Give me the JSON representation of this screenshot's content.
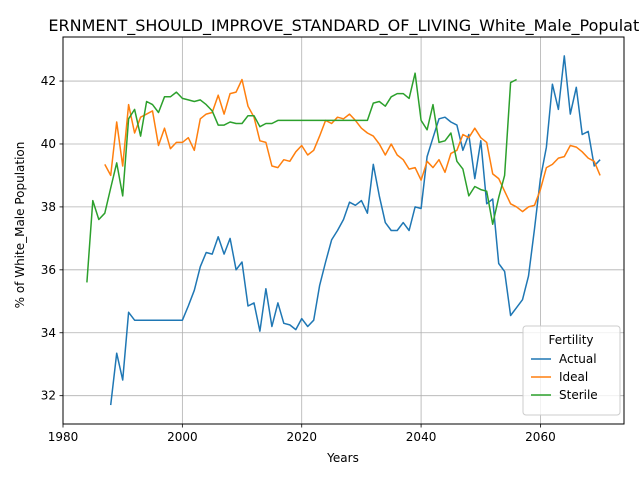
{
  "chart_data": {
    "type": "line",
    "title": "ERNMENT_SHOULD_IMPROVE_STANDARD_OF_LIVING_White_Male_Population_",
    "xlabel": "Years",
    "ylabel": "% of White_Male Population",
    "xlim": [
      1980,
      2074
    ],
    "ylim": [
      31.1,
      43.4
    ],
    "xticks": [
      1980,
      2000,
      2020,
      2040,
      2060
    ],
    "yticks": [
      32,
      34,
      36,
      38,
      40,
      42
    ],
    "grid": true,
    "legend": {
      "title": "Fertility",
      "position": "lower-right"
    },
    "series": [
      {
        "name": "Actual",
        "color": "#1f77b4",
        "x": [
          1988,
          1989,
          1990,
          1991,
          1992,
          1993,
          1994,
          1995,
          1996,
          1997,
          1998,
          1999,
          2000,
          2001,
          2002,
          2003,
          2004,
          2005,
          2006,
          2007,
          2008,
          2009,
          2010,
          2011,
          2012,
          2013,
          2014,
          2015,
          2016,
          2017,
          2018,
          2019,
          2020,
          2021,
          2022,
          2023,
          2024,
          2025,
          2026,
          2027,
          2028,
          2029,
          2030,
          2031,
          2032,
          2033,
          2034,
          2035,
          2036,
          2037,
          2038,
          2039,
          2040,
          2041,
          2042,
          2043,
          2044,
          2045,
          2046,
          2047,
          2048,
          2049,
          2050,
          2051,
          2052,
          2053,
          2054,
          2055,
          2056,
          2057,
          2058,
          2059,
          2060,
          2061,
          2062,
          2063,
          2064,
          2065,
          2066,
          2067,
          2068,
          2069,
          2070
        ],
        "values": [
          31.7,
          33.35,
          32.5,
          34.65,
          34.4,
          34.4,
          34.4,
          34.4,
          34.4,
          34.4,
          34.4,
          34.4,
          34.4,
          34.85,
          35.35,
          36.1,
          36.55,
          36.5,
          37.05,
          36.5,
          37.0,
          36.0,
          36.25,
          34.85,
          34.95,
          34.05,
          35.4,
          34.2,
          34.95,
          34.3,
          34.25,
          34.1,
          34.45,
          34.2,
          34.4,
          35.5,
          36.25,
          36.95,
          37.25,
          37.6,
          38.15,
          38.05,
          38.2,
          37.8,
          39.35,
          38.35,
          37.5,
          37.25,
          37.25,
          37.5,
          37.25,
          38.0,
          37.95,
          39.6,
          40.2,
          40.8,
          40.85,
          40.7,
          40.6,
          39.8,
          40.3,
          38.9,
          40.1,
          38.1,
          38.25,
          36.2,
          35.95,
          34.55,
          34.8,
          35.05,
          35.8,
          37.3,
          38.9,
          39.9,
          41.9,
          41.1,
          42.8,
          40.95,
          41.8,
          40.3,
          40.4,
          39.3,
          39.5
        ]
      },
      {
        "name": "Ideal",
        "color": "#ff7f0e",
        "x": [
          1987,
          1988,
          1989,
          1990,
          1991,
          1992,
          1993,
          1994,
          1995,
          1996,
          1997,
          1998,
          1999,
          2000,
          2001,
          2002,
          2003,
          2004,
          2005,
          2006,
          2007,
          2008,
          2009,
          2010,
          2011,
          2012,
          2013,
          2014,
          2015,
          2016,
          2017,
          2018,
          2019,
          2020,
          2021,
          2022,
          2023,
          2024,
          2025,
          2026,
          2027,
          2028,
          2029,
          2030,
          2031,
          2032,
          2033,
          2034,
          2035,
          2036,
          2037,
          2038,
          2039,
          2040,
          2041,
          2042,
          2043,
          2044,
          2045,
          2046,
          2047,
          2048,
          2049,
          2050,
          2051,
          2052,
          2053,
          2054,
          2055,
          2056,
          2057,
          2058,
          2059,
          2060,
          2061,
          2062,
          2063,
          2064,
          2065,
          2066,
          2067,
          2068,
          2069,
          2070
        ],
        "values": [
          39.35,
          39.0,
          40.7,
          39.3,
          41.25,
          40.35,
          40.85,
          40.95,
          41.05,
          39.95,
          40.5,
          39.85,
          40.05,
          40.05,
          40.2,
          39.8,
          40.8,
          40.95,
          41.0,
          41.55,
          40.95,
          41.6,
          41.65,
          42.05,
          41.2,
          40.85,
          40.1,
          40.05,
          39.3,
          39.25,
          39.5,
          39.45,
          39.75,
          39.95,
          39.65,
          39.8,
          40.25,
          40.75,
          40.65,
          40.85,
          40.8,
          40.95,
          40.75,
          40.5,
          40.35,
          40.25,
          40.0,
          39.65,
          40.0,
          39.65,
          39.5,
          39.2,
          39.25,
          38.85,
          39.45,
          39.25,
          39.5,
          39.1,
          39.7,
          39.8,
          40.3,
          40.2,
          40.5,
          40.2,
          40.05,
          39.05,
          38.9,
          38.5,
          38.1,
          38.0,
          37.85,
          38.0,
          38.05,
          38.55,
          39.25,
          39.35,
          39.55,
          39.6,
          39.95,
          39.9,
          39.75,
          39.55,
          39.45,
          39.0
        ]
      },
      {
        "name": "Sterile",
        "color": "#2ca02c",
        "x": [
          1984,
          1985,
          1986,
          1987,
          1988,
          1989,
          1990,
          1991,
          1992,
          1993,
          1994,
          1995,
          1996,
          1997,
          1998,
          1999,
          2000,
          2001,
          2002,
          2003,
          2004,
          2005,
          2006,
          2007,
          2008,
          2009,
          2010,
          2011,
          2012,
          2013,
          2014,
          2015,
          2016,
          2017,
          2018,
          2019,
          2020,
          2021,
          2022,
          2023,
          2024,
          2025,
          2026,
          2027,
          2028,
          2029,
          2030,
          2031,
          2032,
          2033,
          2034,
          2035,
          2036,
          2037,
          2038,
          2039,
          2040,
          2041,
          2042,
          2043,
          2044,
          2045,
          2046,
          2047,
          2048,
          2049,
          2050,
          2051,
          2052,
          2053,
          2054,
          2055,
          2056
        ],
        "values": [
          35.6,
          38.2,
          37.6,
          37.8,
          38.6,
          39.4,
          38.35,
          40.8,
          41.1,
          40.25,
          41.35,
          41.25,
          41.0,
          41.5,
          41.5,
          41.65,
          41.45,
          41.4,
          41.35,
          41.4,
          41.25,
          41.05,
          40.6,
          40.6,
          40.7,
          40.65,
          40.65,
          40.9,
          40.9,
          40.55,
          40.65,
          40.65,
          40.75,
          40.75,
          40.75,
          40.75,
          40.75,
          40.75,
          40.75,
          40.75,
          40.75,
          40.75,
          40.75,
          40.75,
          40.75,
          40.75,
          40.75,
          40.75,
          41.3,
          41.35,
          41.2,
          41.5,
          41.6,
          41.6,
          41.45,
          42.25,
          40.75,
          40.45,
          41.25,
          40.05,
          40.1,
          40.35,
          39.45,
          39.2,
          38.35,
          38.65,
          38.55,
          38.5,
          37.45,
          38.3,
          39.0,
          41.95,
          42.05
        ]
      }
    ]
  }
}
